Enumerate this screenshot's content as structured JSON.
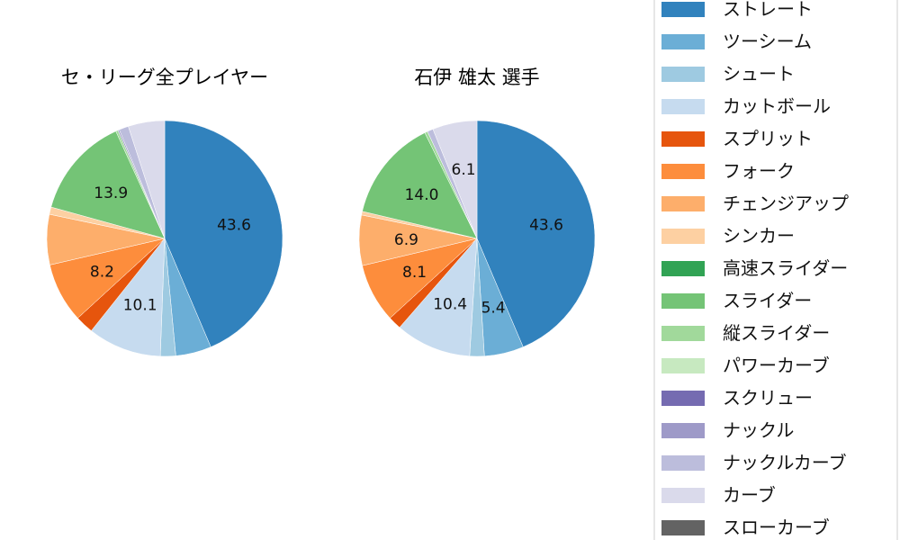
{
  "chart_data": [
    {
      "type": "pie",
      "title": "セ・リーグ全プレイヤー",
      "values": [
        43.6,
        4.9,
        2.1,
        10.1,
        2.5,
        8.2,
        6.9,
        1.0,
        0,
        13.9,
        0.3,
        0,
        0,
        0.2,
        1.3,
        5.0,
        0
      ],
      "shown_labels": [
        "43.6",
        "",
        "",
        "10.1",
        "",
        "8.2",
        "",
        "",
        "",
        "13.9",
        "",
        "",
        "",
        "",
        "",
        "",
        ""
      ]
    },
    {
      "type": "pie",
      "title": "石伊 雄太  選手",
      "values": [
        43.6,
        5.4,
        2.0,
        10.4,
        1.8,
        8.1,
        6.9,
        0.5,
        0,
        14.0,
        0.4,
        0,
        0,
        0,
        0.8,
        6.1,
        0
      ],
      "shown_labels": [
        "43.6",
        "5.4",
        "",
        "10.4",
        "",
        "8.1",
        "6.9",
        "",
        "",
        "14.0",
        "",
        "",
        "",
        "",
        "",
        "6.1",
        ""
      ]
    }
  ],
  "legend": {
    "placement": "right",
    "entries": [
      "ストレート",
      "ツーシーム",
      "シュート",
      "カットボール",
      "スプリット",
      "フォーク",
      "チェンジアップ",
      "シンカー",
      "高速スライダー",
      "スライダー",
      "縦スライダー",
      "パワーカーブ",
      "スクリュー",
      "ナックル",
      "ナックルカーブ",
      "カーブ",
      "スローカーブ"
    ]
  },
  "colors": [
    "#3182bd",
    "#6baed6",
    "#9ecae1",
    "#c6dbef",
    "#e6550d",
    "#fd8d3c",
    "#fdae6b",
    "#fdd0a2",
    "#31a354",
    "#74c476",
    "#a1d99b",
    "#c7e9c0",
    "#756bb1",
    "#9e9ac8",
    "#bcbddc",
    "#dadaeb",
    "#636363"
  ]
}
